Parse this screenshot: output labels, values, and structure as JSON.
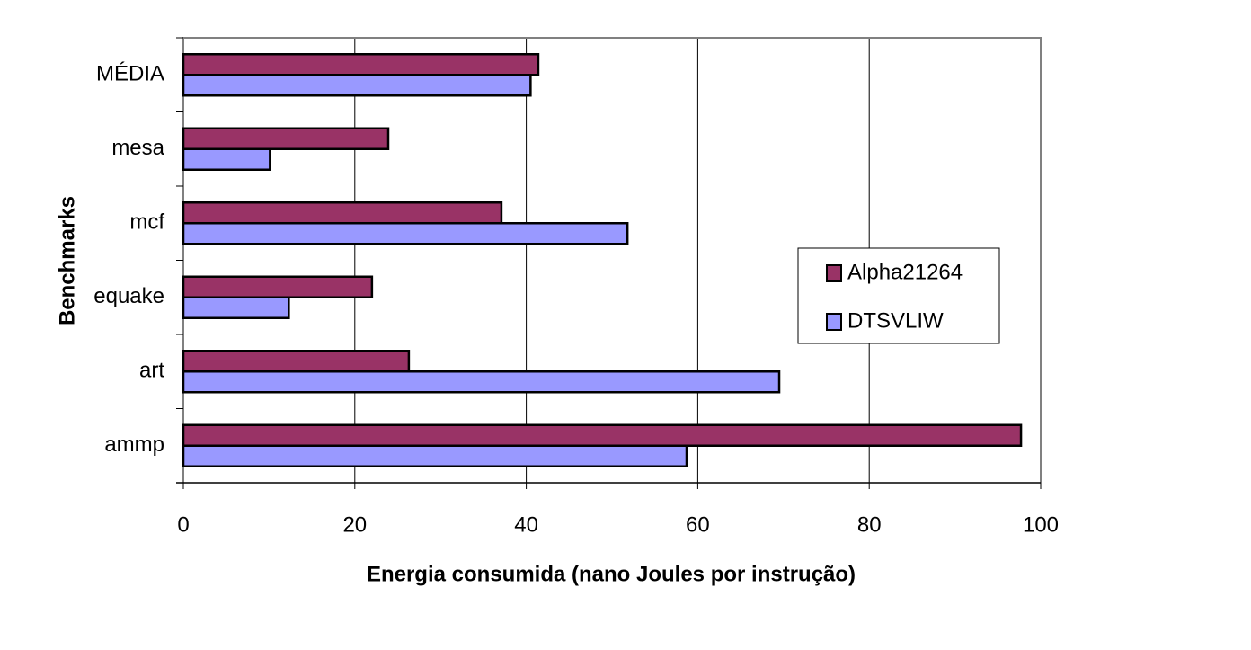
{
  "chart_data": {
    "type": "hbar",
    "categories": [
      "ammp",
      "art",
      "equake",
      "mcf",
      "mesa",
      "MÉDIA"
    ],
    "series": [
      {
        "name": "Alpha21264",
        "color": "#993366",
        "values": [
          97.7,
          26.3,
          22.0,
          37.1,
          23.9,
          41.4
        ]
      },
      {
        "name": "DTSVLIW",
        "color": "#9999ff",
        "values": [
          58.7,
          69.5,
          12.3,
          51.8,
          10.1,
          40.5
        ]
      }
    ],
    "xlim": [
      0,
      100
    ],
    "xticks": [
      0,
      20,
      40,
      60,
      80,
      100
    ],
    "grid": true,
    "x_label": "Energia consumida (nano Joules por instrução)",
    "y_label": "Benchmarks",
    "legend": "right"
  }
}
